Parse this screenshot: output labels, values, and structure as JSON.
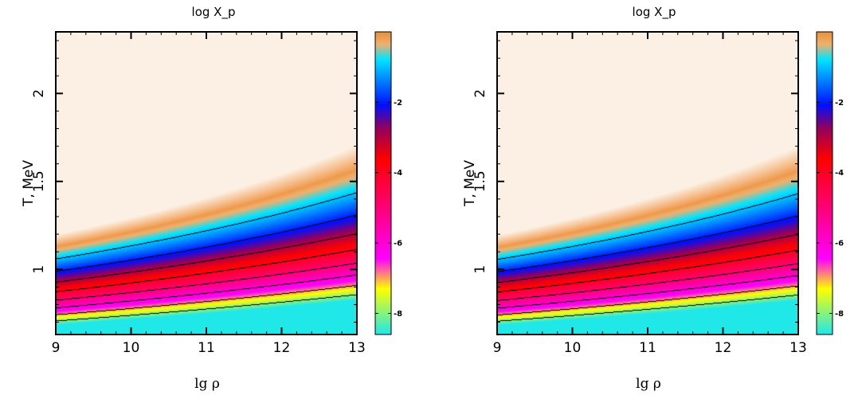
{
  "chart_data": [
    {
      "type": "heatmap",
      "title": "log X_p",
      "xlabel": "lg  ρ",
      "ylabel": "T, MeV",
      "xlim": [
        9,
        13
      ],
      "ylim": [
        0.63,
        2.35
      ],
      "x_ticks": [
        "9",
        "10",
        "11",
        "12",
        "13"
      ],
      "y_ticks": [
        "1",
        "1.5",
        "2"
      ],
      "colorbar": {
        "range": [
          -8.6,
          0
        ],
        "ticks": [
          "-2",
          "-4",
          "-6",
          "-8"
        ],
        "colors_top_to_bottom": [
          "#e8923a",
          "#00e5ff",
          "#0010ff",
          "#ff0000",
          "#ff00ff",
          "#ffff00",
          "#20e8e8"
        ]
      },
      "contour_levels": [
        -1,
        -2,
        -3,
        -4,
        -5,
        -6,
        -7,
        -8
      ],
      "contours_drawn": true,
      "grid": false
    },
    {
      "type": "heatmap",
      "title": "log X_p",
      "xlabel": "lg  ρ",
      "ylabel": "T, MeV",
      "xlim": [
        9,
        13
      ],
      "ylim": [
        0.63,
        2.35
      ],
      "x_ticks": [
        "9",
        "10",
        "11",
        "12",
        "13"
      ],
      "y_ticks": [
        "1",
        "1.5",
        "2"
      ],
      "colorbar": {
        "range": [
          -8.6,
          0
        ],
        "ticks": [
          "-2",
          "-4",
          "-6",
          "-8"
        ],
        "colors_top_to_bottom": [
          "#e8923a",
          "#00e5ff",
          "#0010ff",
          "#ff0000",
          "#ff00ff",
          "#ffff00",
          "#20e8e8"
        ]
      },
      "contour_levels": [
        -1,
        -2,
        -3,
        -4,
        -5,
        -6,
        -7,
        -8
      ],
      "contours_drawn": true,
      "grid": false
    }
  ]
}
